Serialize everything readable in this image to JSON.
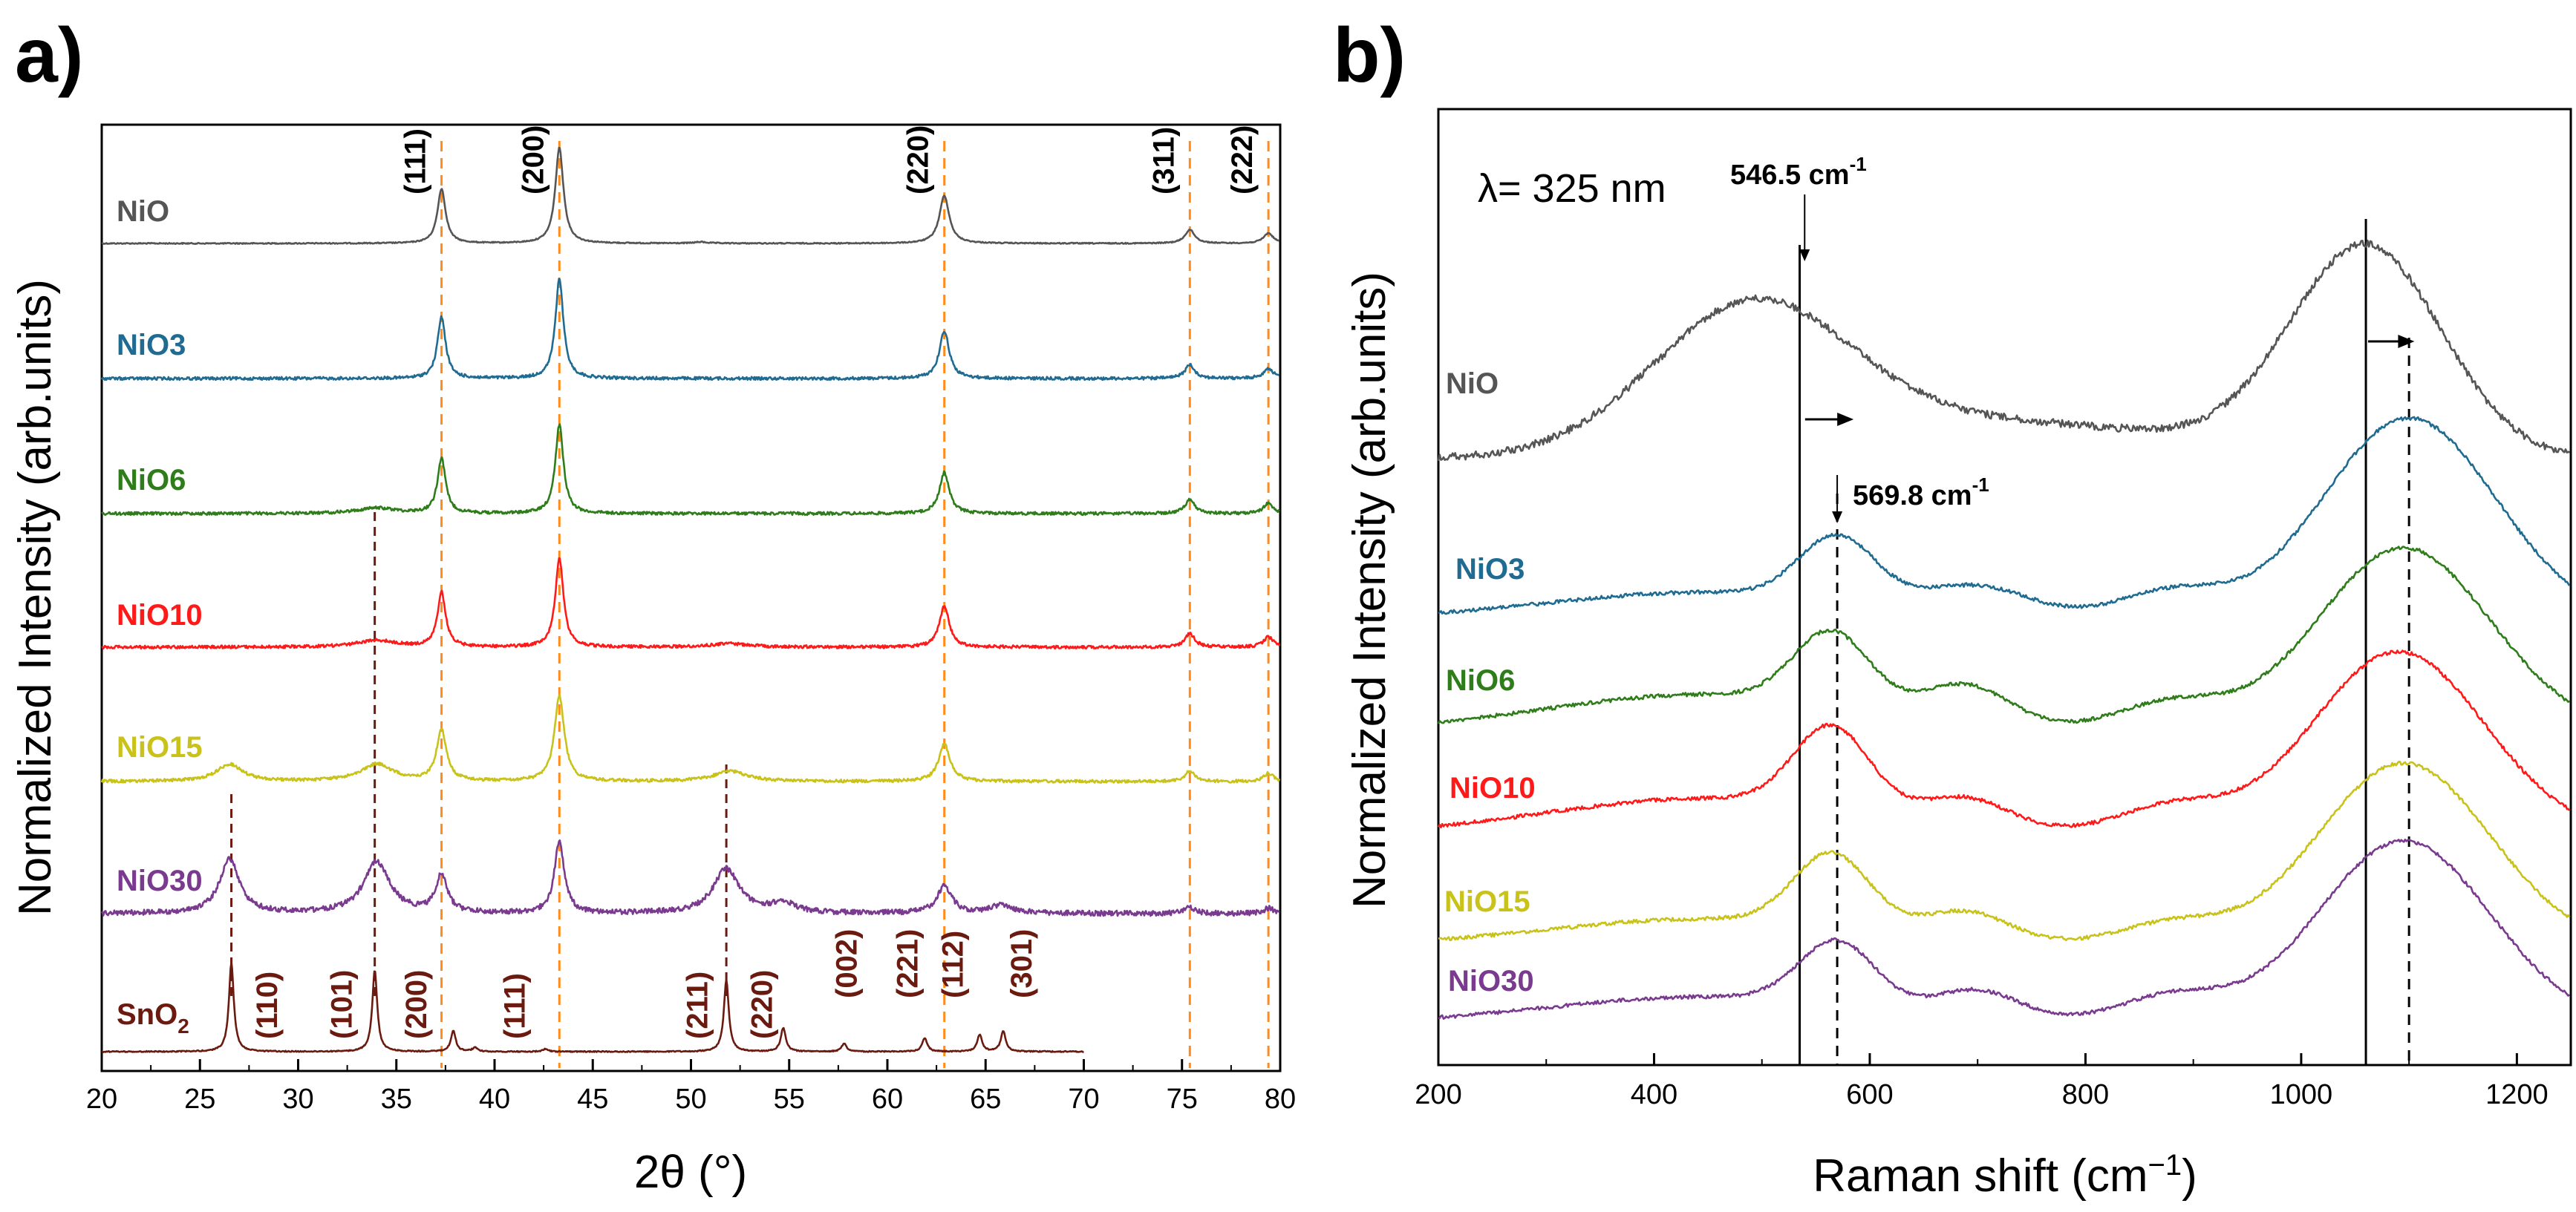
{
  "chart_data": [
    {
      "panel": "a)",
      "type": "line",
      "xlabel": "2θ (°)",
      "ylabel": "Normalized Intensity (arb.units)",
      "xlim": [
        20,
        80
      ],
      "xticks": [
        20,
        25,
        30,
        35,
        40,
        45,
        50,
        55,
        60,
        65,
        70,
        75,
        80
      ],
      "colors": {
        "NiO": "#555555",
        "NiO3": "#1f6b91",
        "NiO6": "#2e7d1a",
        "NiO10": "#ff1a1a",
        "NiO15": "#c8c21a",
        "NiO30": "#7a3a8f",
        "SnO2": "#6b1a10"
      },
      "series": [
        {
          "name": "NiO",
          "label": "NiO",
          "baseline": 0,
          "peaks": [
            [
              37.3,
              0.8,
              0.25
            ],
            [
              43.3,
              1.4,
              0.25
            ],
            [
              50.5,
              0.02,
              0.4
            ],
            [
              62.9,
              0.7,
              0.3
            ],
            [
              75.4,
              0.2,
              0.3
            ],
            [
              79.4,
              0.15,
              0.3
            ]
          ]
        },
        {
          "name": "NiO3",
          "label": "NiO3",
          "baseline": 1,
          "peaks": [
            [
              37.3,
              0.9,
              0.25
            ],
            [
              43.3,
              1.45,
              0.25
            ],
            [
              62.9,
              0.7,
              0.3
            ],
            [
              75.4,
              0.2,
              0.3
            ],
            [
              79.4,
              0.15,
              0.3
            ]
          ]
        },
        {
          "name": "NiO6",
          "label": "NiO6",
          "baseline": 2,
          "peaks": [
            [
              34.0,
              0.08,
              1.2
            ],
            [
              37.3,
              0.8,
              0.25
            ],
            [
              43.3,
              1.3,
              0.25
            ],
            [
              62.9,
              0.6,
              0.3
            ],
            [
              75.4,
              0.2,
              0.3
            ],
            [
              79.4,
              0.15,
              0.3
            ]
          ]
        },
        {
          "name": "NiO10",
          "label": "NiO10",
          "baseline": 3,
          "peaks": [
            [
              34.0,
              0.1,
              1.2
            ],
            [
              37.3,
              0.8,
              0.25
            ],
            [
              43.3,
              1.3,
              0.25
            ],
            [
              52.0,
              0.05,
              1.2
            ],
            [
              62.9,
              0.6,
              0.3
            ],
            [
              75.4,
              0.2,
              0.3
            ],
            [
              79.4,
              0.15,
              0.3
            ]
          ]
        },
        {
          "name": "NiO15",
          "label": "NiO15",
          "baseline": 4,
          "peaks": [
            [
              26.5,
              0.25,
              0.8
            ],
            [
              34.0,
              0.25,
              1.0
            ],
            [
              37.3,
              0.75,
              0.3
            ],
            [
              43.3,
              1.25,
              0.3
            ],
            [
              52.0,
              0.15,
              1.0
            ],
            [
              62.9,
              0.55,
              0.35
            ],
            [
              75.4,
              0.15,
              0.3
            ],
            [
              79.4,
              0.12,
              0.3
            ]
          ]
        },
        {
          "name": "NiO30",
          "label": "NiO30",
          "baseline": 5,
          "peaks": [
            [
              26.5,
              0.8,
              0.6
            ],
            [
              34.0,
              0.75,
              0.8
            ],
            [
              37.3,
              0.55,
              0.35
            ],
            [
              43.3,
              1.05,
              0.3
            ],
            [
              51.8,
              0.65,
              0.8
            ],
            [
              54.7,
              0.15,
              0.7
            ],
            [
              62.9,
              0.4,
              0.45
            ],
            [
              65.8,
              0.12,
              0.7
            ],
            [
              75.4,
              0.1,
              0.3
            ],
            [
              79.4,
              0.08,
              0.3
            ]
          ]
        },
        {
          "name": "SnO2",
          "label": "SnO",
          "label_sub": "2",
          "baseline": 6,
          "xmax": 70,
          "peaks": [
            [
              26.6,
              1.3,
              0.15
            ],
            [
              33.9,
              1.2,
              0.15
            ],
            [
              37.9,
              0.3,
              0.15
            ],
            [
              39.0,
              0.06,
              0.15
            ],
            [
              42.6,
              0.04,
              0.15
            ],
            [
              51.8,
              1.05,
              0.15
            ],
            [
              54.7,
              0.35,
              0.15
            ],
            [
              57.8,
              0.12,
              0.15
            ],
            [
              61.9,
              0.2,
              0.15
            ],
            [
              64.7,
              0.25,
              0.15
            ],
            [
              65.9,
              0.3,
              0.15
            ]
          ]
        }
      ],
      "nio_hkl": [
        {
          "label": "(111)",
          "x": 37.3
        },
        {
          "label": "(200)",
          "x": 43.3
        },
        {
          "label": "(220)",
          "x": 62.9
        },
        {
          "label": "(311)",
          "x": 75.4
        },
        {
          "label": "(222)",
          "x": 79.4
        }
      ],
      "sno2_hkl": [
        {
          "label": "(110)",
          "x": 26.6
        },
        {
          "label": "(101)",
          "x": 33.9
        },
        {
          "label": "(200)",
          "x": 37.9
        },
        {
          "label": "(111)",
          "x": 39.0
        },
        {
          "label": "(211)",
          "x": 51.8
        },
        {
          "label": "(220)",
          "x": 54.7
        },
        {
          "label": "(002)",
          "x": 57.8
        },
        {
          "label": "(221)",
          "x": 61.9
        },
        {
          "label": "(112)",
          "x": 64.7
        },
        {
          "label": "(301)",
          "x": 65.9
        }
      ],
      "orange_dashed_x": [
        37.3,
        43.3,
        62.9,
        75.4,
        79.4
      ],
      "brown_dashed_x": [
        26.6,
        33.9,
        51.8
      ]
    },
    {
      "panel": "b)",
      "type": "line",
      "xlabel": "Raman shift (cm",
      "xlabel_sup": "−1",
      "xlabel_end": ")",
      "ylabel": "Normalized Intensity (arb.units)",
      "xlim": [
        200,
        1250
      ],
      "xticks": [
        200,
        400,
        600,
        800,
        1000,
        1200
      ],
      "wavelength_label": "λ= 325 nm",
      "annotations": [
        {
          "text": "546.5 cm",
          "sup": "-1",
          "x": 546.5
        },
        {
          "text": "569.8 cm",
          "sup": "-1",
          "x": 569.8
        }
      ],
      "solid_lines_x": [
        535,
        1060
      ],
      "dashed_lines_x": [
        569.8,
        1100
      ],
      "series": [
        {
          "name": "NiO",
          "label": "NiO",
          "baseline": 0,
          "bands": [
            [
              490,
              0.9,
              90
            ],
            [
              1060,
              1.35,
              70
            ],
            [
              700,
              0.25,
              200
            ]
          ],
          "drop_at": 560
        },
        {
          "name": "NiO3",
          "label": "NiO3",
          "baseline": 1,
          "bands": [
            [
              570,
              0.35,
              35
            ],
            [
              700,
              0.15,
              50
            ],
            [
              880,
              0.15,
              50
            ],
            [
              1100,
              1.1,
              80
            ],
            [
              450,
              0.15,
              150
            ]
          ]
        },
        {
          "name": "NiO6",
          "label": "NiO6",
          "baseline": 2,
          "bands": [
            [
              565,
              0.4,
              35
            ],
            [
              690,
              0.2,
              40
            ],
            [
              880,
              0.15,
              50
            ],
            [
              1095,
              1.0,
              80
            ],
            [
              450,
              0.2,
              150
            ]
          ]
        },
        {
          "name": "NiO10",
          "label": "NiO10",
          "baseline": 3,
          "bands": [
            [
              565,
              0.45,
              35
            ],
            [
              690,
              0.15,
              40
            ],
            [
              880,
              0.15,
              50
            ],
            [
              1090,
              1.0,
              80
            ],
            [
              450,
              0.2,
              150
            ]
          ]
        },
        {
          "name": "NiO15",
          "label": "NiO15",
          "baseline": 4,
          "bands": [
            [
              565,
              0.4,
              35
            ],
            [
              690,
              0.15,
              40
            ],
            [
              880,
              0.12,
              50
            ],
            [
              1095,
              1.0,
              80
            ],
            [
              450,
              0.15,
              150
            ]
          ]
        },
        {
          "name": "NiO30",
          "label": "NiO30",
          "baseline": 5,
          "bands": [
            [
              570,
              0.35,
              35
            ],
            [
              700,
              0.15,
              40
            ],
            [
              880,
              0.15,
              50
            ],
            [
              1095,
              1.0,
              80
            ],
            [
              450,
              0.15,
              150
            ]
          ]
        }
      ]
    }
  ]
}
